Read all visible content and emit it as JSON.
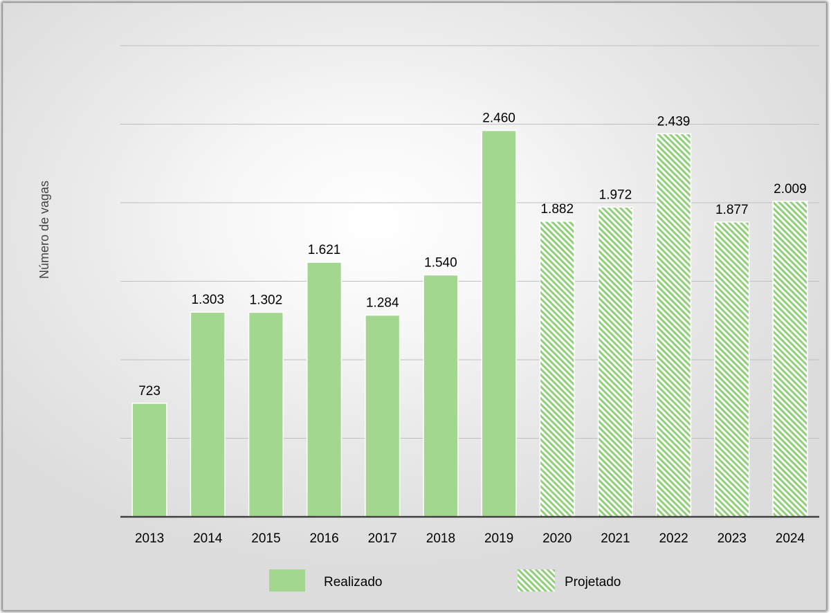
{
  "chart_data": {
    "type": "bar",
    "title": "",
    "xlabel": "",
    "ylabel": "Número de vagas",
    "ylim": [
      0,
      3000
    ],
    "ytick_step": 500,
    "grid": true,
    "legend_position": "bottom",
    "categories": [
      "2013",
      "2014",
      "2015",
      "2016",
      "2017",
      "2018",
      "2019",
      "2020",
      "2021",
      "2022",
      "2023",
      "2024"
    ],
    "series": [
      {
        "name": "Realizado",
        "style": "solid",
        "color": "#a3d68f",
        "values": [
          723,
          1303,
          1302,
          1621,
          1284,
          1540,
          2460,
          null,
          null,
          null,
          null,
          null
        ],
        "labels": [
          "723",
          "1.303",
          "1.302",
          "1.621",
          "1.284",
          "1.540",
          "2.460",
          "",
          "",
          "",
          "",
          ""
        ]
      },
      {
        "name": "Projetado",
        "style": "hatched",
        "color": "#8fcf78",
        "values": [
          null,
          null,
          null,
          null,
          null,
          null,
          null,
          1882,
          1972,
          2439,
          1877,
          2009
        ],
        "labels": [
          "",
          "",
          "",
          "",
          "",
          "",
          "",
          "1.882",
          "1.972",
          "2.439",
          "1.877",
          "2.009"
        ]
      }
    ],
    "axis_color": "#404040",
    "grid_color": "#bfbfbf"
  }
}
